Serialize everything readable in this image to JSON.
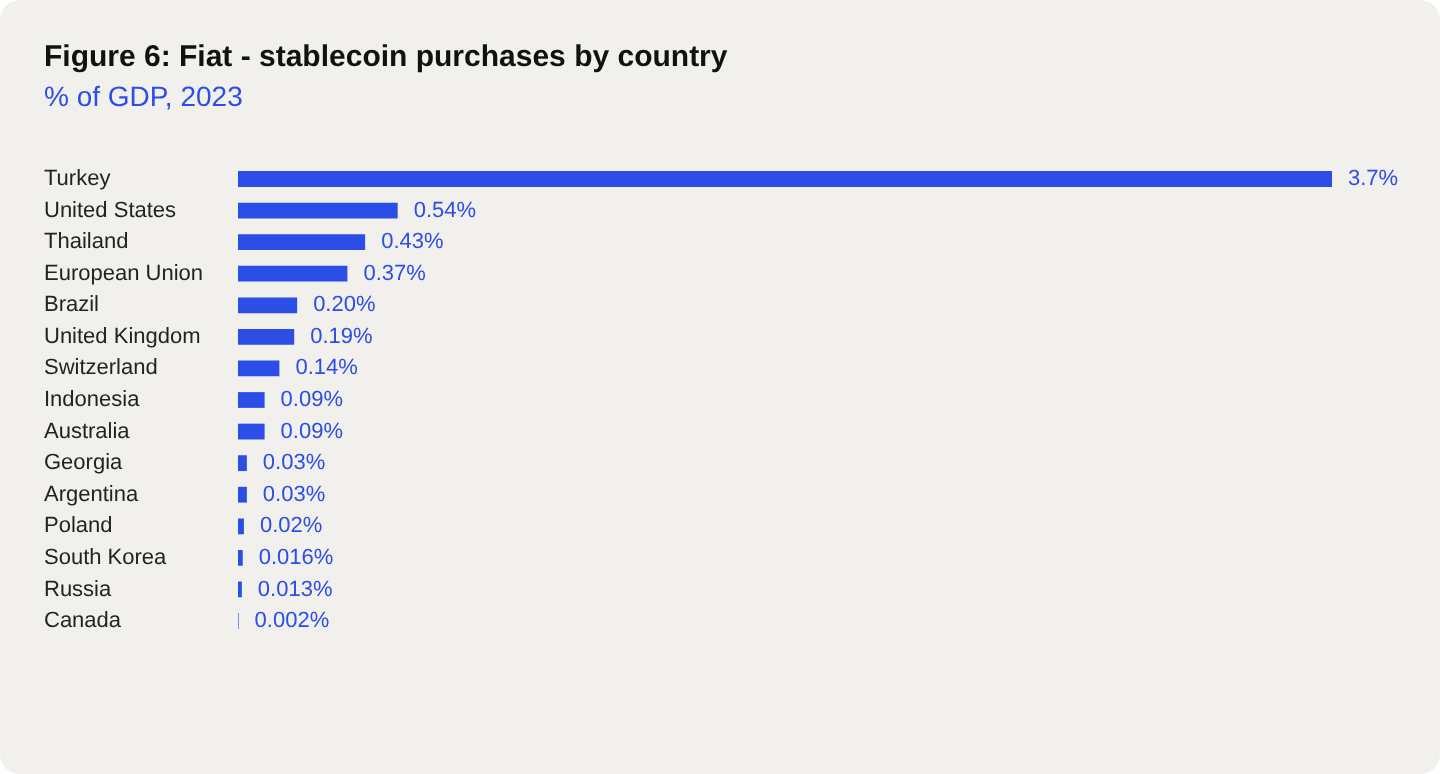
{
  "chart_data": {
    "type": "bar",
    "orientation": "horizontal",
    "title": "Figure 6: Fiat - stablecoin purchases by country",
    "subtitle": "% of GDP, 2023",
    "categories": [
      "Turkey",
      "United States",
      "Thailand",
      "European Union",
      "Brazil",
      "United Kingdom",
      "Switzerland",
      "Indonesia",
      "Australia",
      "Georgia",
      "Argentina",
      "Poland",
      "South Korea",
      "Russia",
      "Canada"
    ],
    "values": [
      3.7,
      0.54,
      0.43,
      0.37,
      0.2,
      0.19,
      0.14,
      0.09,
      0.09,
      0.03,
      0.03,
      0.02,
      0.016,
      0.013,
      0.002
    ],
    "value_labels": [
      "3.7%",
      "0.54%",
      "0.43%",
      "0.37%",
      "0.20%",
      "0.19%",
      "0.14%",
      "0.09%",
      "0.09%",
      "0.03%",
      "0.03%",
      "0.02%",
      "0.016%",
      "0.013%",
      "0.002%"
    ],
    "color": "#2b4ee6",
    "grid": false,
    "legend": false
  }
}
